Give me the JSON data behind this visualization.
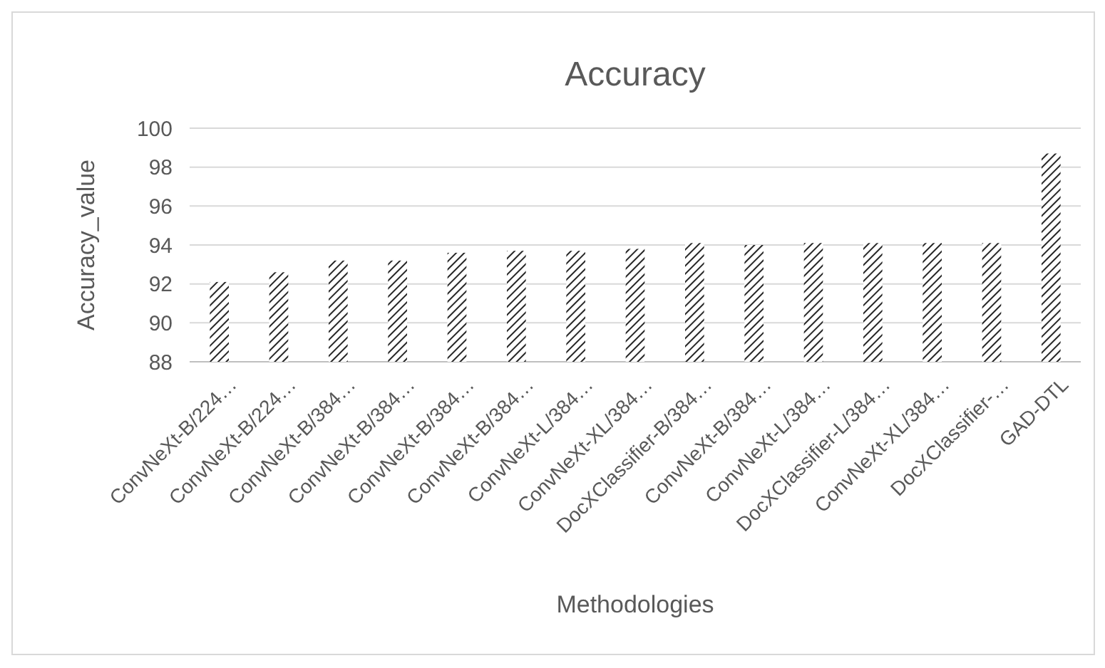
{
  "chart_data": {
    "type": "bar",
    "title": "Accuracy",
    "xlabel": "Methodologies",
    "ylabel": "Accuracy_value",
    "categories": [
      "ConvNeXt-B/224…",
      "ConvNeXt-B/224…",
      "ConvNeXt-B/384…",
      "ConvNeXt-B/384…",
      "ConvNeXt-B/384…",
      "ConvNeXt-B/384…",
      "ConvNeXt-L/384…",
      "ConvNeXt-XL/384…",
      "DocXClassifier-B/384…",
      "ConvNeXt-B/384…",
      "ConvNeXt-L/384…",
      "DocXClassifier-L/384…",
      "ConvNeXt-XL/384…",
      "DocXClassifier-…",
      "GAD-DTL"
    ],
    "values": [
      92.1,
      92.6,
      93.2,
      93.2,
      93.6,
      93.7,
      93.7,
      93.8,
      94.1,
      94.0,
      94.1,
      94.1,
      94.1,
      94.1,
      98.7
    ],
    "color": "#262626",
    "ylim": [
      88,
      100
    ],
    "yticks": [
      88,
      90,
      92,
      94,
      96,
      98,
      100
    ],
    "grid": "y"
  }
}
